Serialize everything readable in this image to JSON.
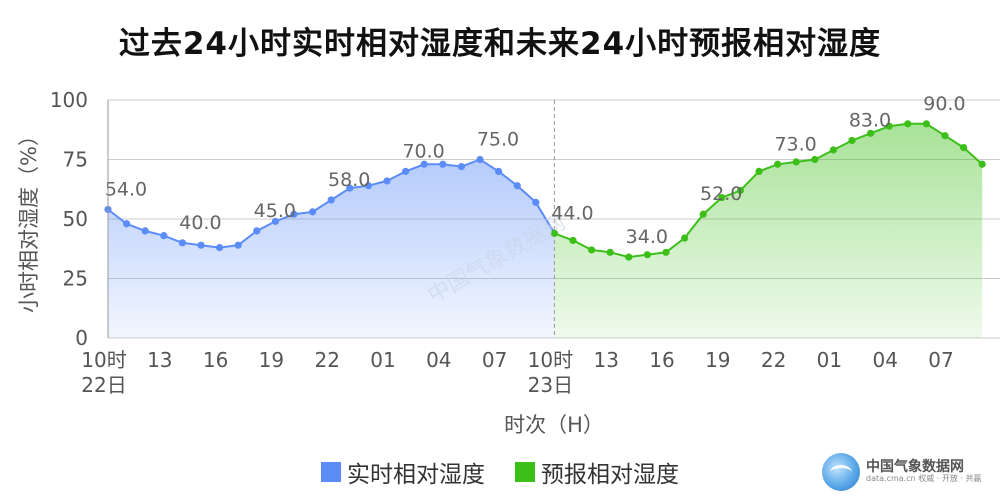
{
  "title": "过去24小时实时相对湿度和未来24小时预报相对湿度",
  "chart_data": {
    "type": "area",
    "title": "过去24小时实时相对湿度和未来24小时预报相对湿度",
    "xlabel": "时次（H）",
    "ylabel": "小时相对湿度（%）",
    "ylim": [
      0,
      100
    ],
    "yticks": [
      0,
      25,
      50,
      75,
      100
    ],
    "x_hours": [
      10,
      11,
      12,
      13,
      14,
      15,
      16,
      17,
      18,
      19,
      20,
      21,
      22,
      23,
      0,
      1,
      2,
      3,
      4,
      5,
      6,
      7,
      8,
      9,
      10,
      11,
      12,
      13,
      14,
      15,
      16,
      17,
      18,
      19,
      20,
      21,
      22,
      23,
      0,
      1,
      2,
      3,
      4,
      5,
      6,
      7,
      8,
      9
    ],
    "x_tick_labels": [
      {
        "index": 0,
        "line1": "10时",
        "line2": "22日"
      },
      {
        "index": 3,
        "line1": "13",
        "line2": ""
      },
      {
        "index": 6,
        "line1": "16",
        "line2": ""
      },
      {
        "index": 9,
        "line1": "19",
        "line2": ""
      },
      {
        "index": 12,
        "line1": "22",
        "line2": ""
      },
      {
        "index": 15,
        "line1": "01",
        "line2": ""
      },
      {
        "index": 18,
        "line1": "04",
        "line2": ""
      },
      {
        "index": 21,
        "line1": "07",
        "line2": ""
      },
      {
        "index": 24,
        "line1": "10时",
        "line2": "23日"
      },
      {
        "index": 27,
        "line1": "13",
        "line2": ""
      },
      {
        "index": 30,
        "line1": "16",
        "line2": ""
      },
      {
        "index": 33,
        "line1": "19",
        "line2": ""
      },
      {
        "index": 36,
        "line1": "22",
        "line2": ""
      },
      {
        "index": 39,
        "line1": "01",
        "line2": ""
      },
      {
        "index": 42,
        "line1": "04",
        "line2": ""
      },
      {
        "index": 45,
        "line1": "07",
        "line2": ""
      }
    ],
    "series": [
      {
        "name": "实时相对湿度",
        "color": "#5b8cf7",
        "start_index": 0,
        "values": [
          54,
          48,
          45,
          43,
          40,
          39,
          38,
          39,
          45,
          49,
          52,
          53,
          58,
          63,
          64,
          66,
          70,
          73,
          73,
          72,
          75,
          70,
          64,
          57,
          44
        ],
        "labels": [
          {
            "index": 0,
            "text": "54.0"
          },
          {
            "index": 4,
            "text": "40.0"
          },
          {
            "index": 8,
            "text": "45.0"
          },
          {
            "index": 12,
            "text": "58.0"
          },
          {
            "index": 16,
            "text": "70.0"
          },
          {
            "index": 20,
            "text": "75.0"
          }
        ]
      },
      {
        "name": "预报相对湿度",
        "color": "#3dbf1a",
        "start_index": 24,
        "values": [
          44,
          41,
          37,
          36,
          34,
          35,
          36,
          42,
          52,
          59,
          62,
          70,
          73,
          74,
          75,
          79,
          83,
          86,
          89,
          90,
          90,
          85,
          80,
          73
        ],
        "labels": [
          {
            "index": 24,
            "text": "44.0"
          },
          {
            "index": 28,
            "text": "34.0"
          },
          {
            "index": 32,
            "text": "52.0"
          },
          {
            "index": 36,
            "text": "73.0"
          },
          {
            "index": 40,
            "text": "83.0"
          },
          {
            "index": 44,
            "text": "90.0"
          }
        ]
      }
    ],
    "legend_position": "bottom",
    "grid": true,
    "watermark_text": "中国气象数据网"
  },
  "logo": {
    "main": "中国气象数据网",
    "sub": "data.cma.cn 权威 · 开放 · 共赢"
  }
}
